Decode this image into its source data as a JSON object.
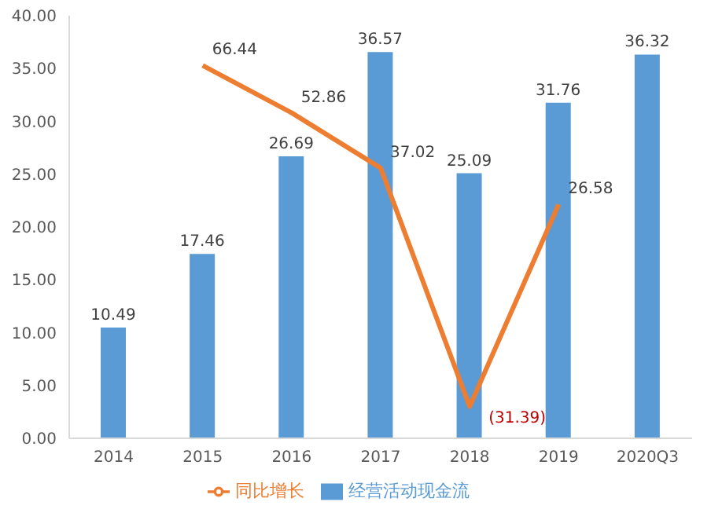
{
  "chart_data": {
    "type": "bar",
    "categories": [
      "2014",
      "2015",
      "2016",
      "2017",
      "2018",
      "2019",
      "2020Q3"
    ],
    "series": [
      {
        "name": "经营活动现金流",
        "color": "#5b9bd5",
        "values": [
          10.49,
          17.46,
          26.69,
          36.57,
          25.09,
          31.76,
          36.32
        ],
        "value_labels": [
          "10.49",
          "17.46",
          "26.69",
          "36.57",
          "25.09",
          "31.76",
          "36.32"
        ]
      },
      {
        "name": "同比增长",
        "type": "line",
        "axis": "y2",
        "color": "#ed7d31",
        "values": [
          null,
          66.44,
          52.86,
          37.02,
          -31.39,
          26.58,
          null
        ],
        "value_labels": [
          null,
          "66.44",
          "52.86",
          "37.02",
          "(31.39)",
          "26.58",
          null
        ]
      }
    ],
    "ylim": [
      0,
      40
    ],
    "yticks": [
      {
        "value": 0,
        "label": "0.00"
      },
      {
        "value": 5,
        "label": "5.00"
      },
      {
        "value": 10,
        "label": "10.00"
      },
      {
        "value": 15,
        "label": "15.00"
      },
      {
        "value": 20,
        "label": "20.00"
      },
      {
        "value": 25,
        "label": "25.00"
      },
      {
        "value": 30,
        "label": "30.00"
      },
      {
        "value": 35,
        "label": "35.00"
      },
      {
        "value": 40,
        "label": "40.00"
      }
    ],
    "y2lim": [
      -40.5,
      80.7
    ],
    "marker": "none",
    "line_style": "solid",
    "grid": false,
    "legend": "bottom"
  }
}
